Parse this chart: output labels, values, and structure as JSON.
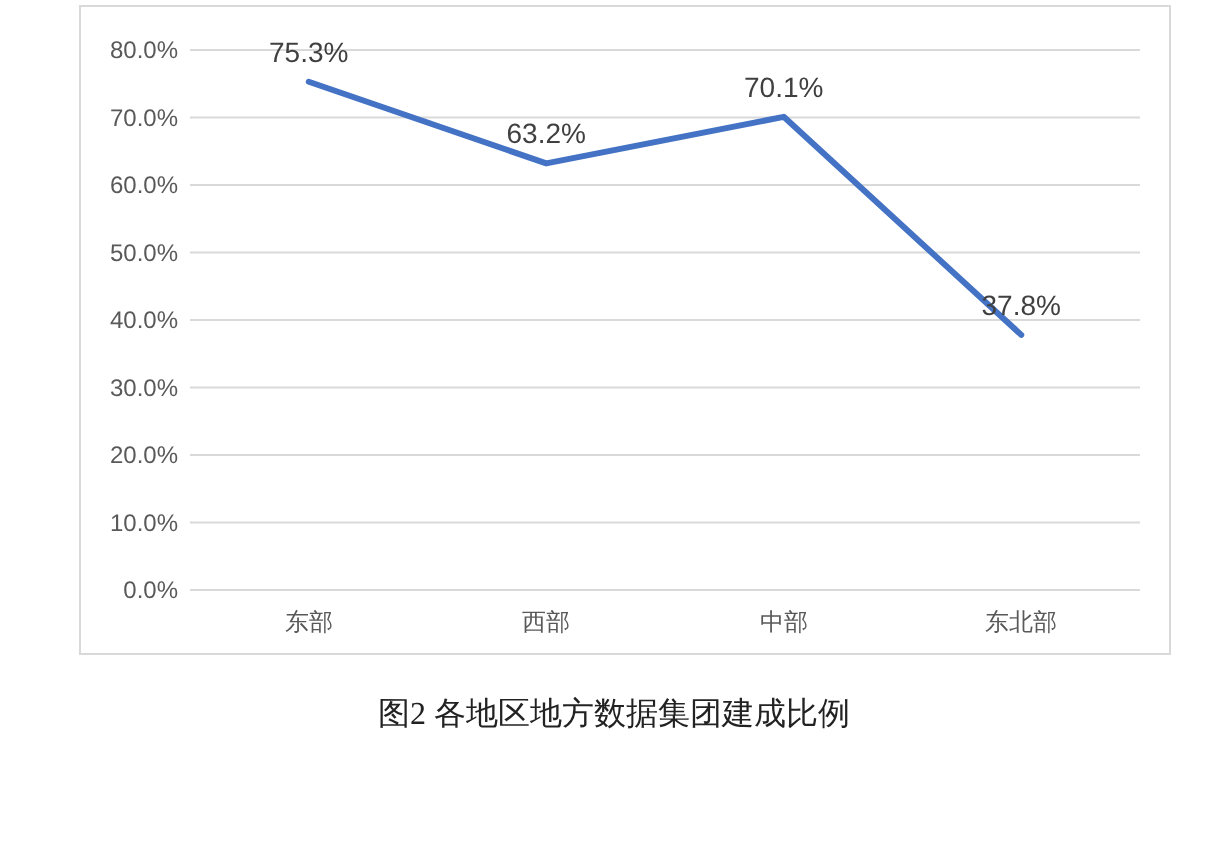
{
  "chart_data": {
    "type": "line",
    "title": "图2 各地区地方数据集团建成比例",
    "categories": [
      "东部",
      "西部",
      "中部",
      "东北部"
    ],
    "series": [
      {
        "color": "#4472c4",
        "values": [
          75.3,
          63.2,
          70.1,
          37.8
        ],
        "value_labels": [
          "75.3%",
          "63.2%",
          "70.1%",
          "37.8%"
        ]
      }
    ],
    "ylim": [
      0,
      80
    ],
    "yticks": [
      {
        "value": 0,
        "label": "0.0%"
      },
      {
        "value": 10,
        "label": "10.0%"
      },
      {
        "value": 20,
        "label": "20.0%"
      },
      {
        "value": 30,
        "label": "30.0%"
      },
      {
        "value": 40,
        "label": "40.0%"
      },
      {
        "value": 50,
        "label": "50.0%"
      },
      {
        "value": 60,
        "label": "60.0%"
      },
      {
        "value": 70,
        "label": "70.0%"
      },
      {
        "value": 80,
        "label": "80.0%"
      }
    ],
    "grid": "y",
    "marker": "none",
    "line_style": "solid"
  }
}
